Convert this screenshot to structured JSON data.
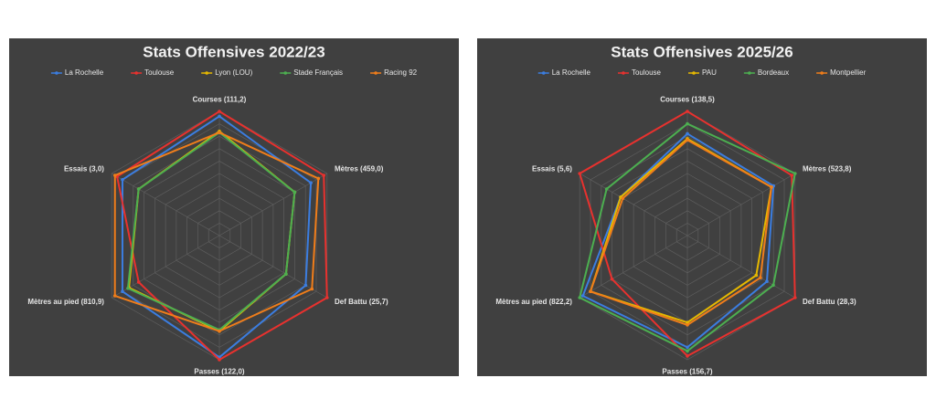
{
  "chart_data": [
    {
      "type": "radar",
      "title": "Stats Offensives 2022/23",
      "axes": [
        {
          "label": "Courses (111,2)",
          "max": 111.2
        },
        {
          "label": "Mètres (459,0)",
          "max": 459.0
        },
        {
          "label": "Def Battu (25,7)",
          "max": 25.7
        },
        {
          "label": "Passes (122,0)",
          "max": 122.0
        },
        {
          "label": "Mètres au pied (810,9)",
          "max": 810.9
        },
        {
          "label": "Essais (3,0)",
          "max": 3.0
        }
      ],
      "series": [
        {
          "name": "La Rochelle",
          "color": "#3b7de0",
          "values": [
            106.8,
            390,
            20.6,
            119.6,
            730,
            2.7
          ]
        },
        {
          "name": "Toulouse",
          "color": "#e8312e",
          "values": [
            111.2,
            445,
            25.7,
            122,
            608,
            2.85
          ]
        },
        {
          "name": "Lyon (LOU)",
          "color": "#e6b800",
          "values": [
            93.4,
            321,
            15.9,
            93.9,
            681,
            2.25
          ]
        },
        {
          "name": "Stade Français",
          "color": "#4caf50",
          "values": [
            92.3,
            321,
            15.9,
            92.7,
            689,
            2.25
          ]
        },
        {
          "name": "Racing 92",
          "color": "#f07d1a",
          "values": [
            92.3,
            422,
            22.1,
            93.9,
            787,
            2.91
          ]
        }
      ]
    },
    {
      "type": "radar",
      "title": "Stats Offensives 2025/26",
      "axes": [
        {
          "label": "Courses (138,5)",
          "max": 138.5
        },
        {
          "label": "Mètres (523,8)",
          "max": 523.8
        },
        {
          "label": "Def Battu (28,3)",
          "max": 28.3
        },
        {
          "label": "Passes (156,7)",
          "max": 156.7
        },
        {
          "label": "Mètres au pied (822,2)",
          "max": 822.2
        },
        {
          "label": "Essais (5,6)",
          "max": 5.6
        }
      ],
      "series": [
        {
          "name": "La Rochelle",
          "color": "#3b7de0",
          "values": [
            113.6,
            419,
            20.9,
            141,
            798,
            3.47
          ]
        },
        {
          "name": "Toulouse",
          "color": "#e8312e",
          "values": [
            138.5,
            508,
            28.3,
            152,
            576,
            5.6
          ]
        },
        {
          "name": "PAU",
          "color": "#e6b800",
          "values": [
            108,
            409,
            18.1,
            109.7,
            740,
            3.47
          ]
        },
        {
          "name": "Bordeaux",
          "color": "#4caf50",
          "values": [
            124.7,
            523.8,
            22.6,
            145.7,
            822.2,
            4.2
          ]
        },
        {
          "name": "Montpellier",
          "color": "#f07d1a",
          "values": [
            106.6,
            409,
            19.2,
            112.8,
            740,
            3.36
          ]
        }
      ]
    }
  ]
}
